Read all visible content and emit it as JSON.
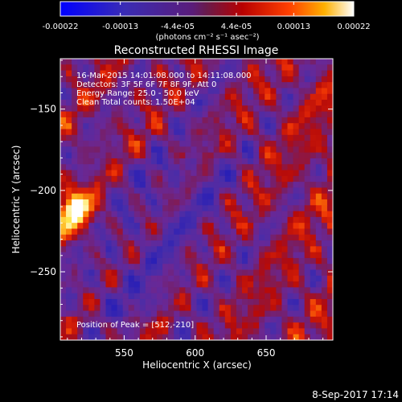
{
  "chart_data": {
    "type": "heatmap",
    "title": "Reconstructed RHESSI Image",
    "xlabel": "Heliocentric X (arcsec)",
    "ylabel": "Heliocentric Y (arcsec)",
    "xlim": [
      505,
      697
    ],
    "ylim": [
      -292,
      -119
    ],
    "xticks": [
      550,
      600,
      650
    ],
    "yticks": [
      -150,
      -200,
      -250
    ],
    "colorbar": {
      "min": -0.00022,
      "max": 0.00022,
      "tick_labels": [
        "-0.00022",
        "-0.00013",
        "-4.4e-05",
        "4.4e-05",
        "0.00013",
        "0.00022"
      ],
      "tick_values": [
        -0.00022,
        -0.00013,
        -4.4e-05,
        4.4e-05,
        0.00013,
        0.00022
      ],
      "unit_label": "(photons cm⁻² s⁻¹ asec⁻²)"
    },
    "annotations": [
      "16-Mar-2015 14:01:08.000 to 14:11:08.000",
      "Detectors: 3F 5F 6F 7F 8F 9F, Att 0",
      "Energy Range: 25.0 - 50.0 keV",
      "Clean     Total counts: 1.50E+04"
    ],
    "peak_label": "Position of Peak = [512,-210]",
    "peak": [
      512,
      -210
    ],
    "grid": false
  },
  "footer": {
    "timestamp": "8-Sep-2017 17:14"
  }
}
